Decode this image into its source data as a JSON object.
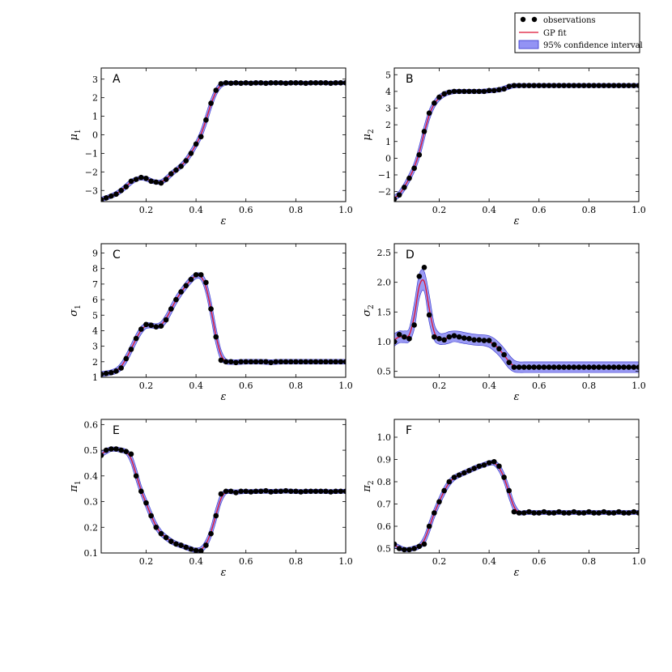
{
  "colors": {
    "observation": "#000000",
    "fit": "#dd1133",
    "band": "#6f6ff0",
    "band_edge": "#3333cc",
    "axes": "#000000"
  },
  "legend": {
    "placement": "top-right",
    "items": [
      {
        "label": "observations",
        "kind": "dots"
      },
      {
        "label": "GP fit",
        "kind": "line"
      },
      {
        "label": "95% confidence interval",
        "kind": "patch"
      }
    ]
  },
  "chart_data": [
    {
      "letter": "A",
      "type": "scatter",
      "xlabel": "ε",
      "ylabel": "μ1",
      "ylabel_base": "μ",
      "ylabel_sub": "1",
      "xlim": [
        0.02,
        1.0
      ],
      "ylim": [
        -3.6,
        3.6
      ],
      "xticks": [
        0.2,
        0.4,
        0.6,
        0.8,
        1.0
      ],
      "xtick_labels": [
        "0.2",
        "0.4",
        "0.6",
        "0.8",
        "1.0"
      ],
      "yticks": [
        -3,
        -2,
        -1,
        0,
        1,
        2,
        3
      ],
      "ytick_labels": [
        "−3",
        "−2",
        "−1",
        "0",
        "1",
        "2",
        "3"
      ],
      "ci_halfwidth": 0.1,
      "observations": {
        "x": [
          0.02,
          0.04,
          0.06,
          0.08,
          0.1,
          0.12,
          0.14,
          0.16,
          0.18,
          0.2,
          0.22,
          0.24,
          0.26,
          0.28,
          0.3,
          0.32,
          0.34,
          0.36,
          0.38,
          0.4,
          0.42,
          0.44,
          0.46,
          0.48,
          0.5,
          0.52,
          0.54,
          0.56,
          0.58,
          0.6,
          0.62,
          0.64,
          0.66,
          0.68,
          0.7,
          0.72,
          0.74,
          0.76,
          0.78,
          0.8,
          0.82,
          0.84,
          0.86,
          0.88,
          0.9,
          0.92,
          0.94,
          0.96,
          0.98,
          1.0
        ],
        "y": [
          -3.5,
          -3.4,
          -3.3,
          -3.2,
          -3.0,
          -2.8,
          -2.5,
          -2.4,
          -2.3,
          -2.35,
          -2.5,
          -2.55,
          -2.6,
          -2.4,
          -2.1,
          -1.9,
          -1.7,
          -1.4,
          -1.0,
          -0.5,
          -0.1,
          0.8,
          1.7,
          2.4,
          2.75,
          2.8,
          2.78,
          2.8,
          2.78,
          2.8,
          2.78,
          2.8,
          2.8,
          2.78,
          2.8,
          2.8,
          2.8,
          2.78,
          2.8,
          2.8,
          2.8,
          2.78,
          2.8,
          2.8,
          2.8,
          2.8,
          2.78,
          2.8,
          2.8,
          2.8
        ]
      }
    },
    {
      "letter": "B",
      "type": "scatter",
      "xlabel": "ε",
      "ylabel": "μ2",
      "ylabel_base": "μ",
      "ylabel_sub": "2",
      "xlim": [
        0.02,
        1.0
      ],
      "ylim": [
        -2.6,
        5.4
      ],
      "xticks": [
        0.2,
        0.4,
        0.6,
        0.8,
        1.0
      ],
      "xtick_labels": [
        "0.2",
        "0.4",
        "0.6",
        "0.8",
        "1.0"
      ],
      "yticks": [
        -2,
        -1,
        0,
        1,
        2,
        3,
        4,
        5
      ],
      "ytick_labels": [
        "−2",
        "−1",
        "0",
        "1",
        "2",
        "3",
        "4",
        "5"
      ],
      "ci_halfwidth": 0.12,
      "observations": {
        "x": [
          0.02,
          0.04,
          0.06,
          0.08,
          0.1,
          0.12,
          0.14,
          0.16,
          0.18,
          0.2,
          0.22,
          0.24,
          0.26,
          0.28,
          0.3,
          0.32,
          0.34,
          0.36,
          0.38,
          0.4,
          0.42,
          0.44,
          0.46,
          0.48,
          0.5,
          0.52,
          0.54,
          0.56,
          0.58,
          0.6,
          0.62,
          0.64,
          0.66,
          0.68,
          0.7,
          0.72,
          0.74,
          0.76,
          0.78,
          0.8,
          0.82,
          0.84,
          0.86,
          0.88,
          0.9,
          0.92,
          0.94,
          0.96,
          0.98,
          1.0
        ],
        "y": [
          -2.45,
          -2.2,
          -1.75,
          -1.2,
          -0.6,
          0.2,
          1.6,
          2.7,
          3.3,
          3.65,
          3.85,
          3.95,
          4.0,
          4.0,
          4.0,
          4.0,
          4.0,
          4.0,
          4.0,
          4.05,
          4.05,
          4.1,
          4.15,
          4.3,
          4.35,
          4.35,
          4.35,
          4.35,
          4.35,
          4.35,
          4.35,
          4.35,
          4.35,
          4.35,
          4.35,
          4.35,
          4.35,
          4.35,
          4.35,
          4.35,
          4.35,
          4.35,
          4.35,
          4.35,
          4.35,
          4.35,
          4.35,
          4.35,
          4.35,
          4.35
        ]
      }
    },
    {
      "letter": "C",
      "type": "scatter",
      "xlabel": "ε",
      "ylabel": "σ1",
      "ylabel_base": "σ",
      "ylabel_sub": "1",
      "xlim": [
        0.02,
        1.0
      ],
      "ylim": [
        1.0,
        9.6
      ],
      "xticks": [
        0.2,
        0.4,
        0.6,
        0.8,
        1.0
      ],
      "xtick_labels": [
        "0.2",
        "0.4",
        "0.6",
        "0.8",
        "1.0"
      ],
      "yticks": [
        1,
        2,
        3,
        4,
        5,
        6,
        7,
        8,
        9
      ],
      "ytick_labels": [
        "1",
        "2",
        "3",
        "4",
        "5",
        "6",
        "7",
        "8",
        "9"
      ],
      "ci_halfwidth": 0.15,
      "observations": {
        "x": [
          0.02,
          0.04,
          0.06,
          0.08,
          0.1,
          0.12,
          0.14,
          0.16,
          0.18,
          0.2,
          0.22,
          0.24,
          0.26,
          0.28,
          0.3,
          0.32,
          0.34,
          0.36,
          0.38,
          0.4,
          0.42,
          0.44,
          0.46,
          0.48,
          0.5,
          0.52,
          0.54,
          0.56,
          0.58,
          0.6,
          0.62,
          0.64,
          0.66,
          0.68,
          0.7,
          0.72,
          0.74,
          0.76,
          0.78,
          0.8,
          0.82,
          0.84,
          0.86,
          0.88,
          0.9,
          0.92,
          0.94,
          0.96,
          0.98,
          1.0
        ],
        "y": [
          1.2,
          1.25,
          1.3,
          1.4,
          1.6,
          2.2,
          2.8,
          3.5,
          4.1,
          4.4,
          4.35,
          4.25,
          4.3,
          4.7,
          5.4,
          6.0,
          6.5,
          6.9,
          7.3,
          7.6,
          7.6,
          7.1,
          5.4,
          3.6,
          2.1,
          2.0,
          2.0,
          1.95,
          2.0,
          2.0,
          2.0,
          2.0,
          2.0,
          2.0,
          1.95,
          2.0,
          2.0,
          2.0,
          2.0,
          2.0,
          2.0,
          2.0,
          2.0,
          2.0,
          2.0,
          2.0,
          2.0,
          2.0,
          2.0,
          2.0
        ]
      }
    },
    {
      "letter": "D",
      "type": "scatter",
      "xlabel": "ε",
      "ylabel": "σ2",
      "ylabel_base": "σ",
      "ylabel_sub": "2",
      "xlim": [
        0.02,
        1.0
      ],
      "ylim": [
        0.4,
        2.65
      ],
      "xticks": [
        0.2,
        0.4,
        0.6,
        0.8,
        1.0
      ],
      "xtick_labels": [
        "0.2",
        "0.4",
        "0.6",
        "0.8",
        "1.0"
      ],
      "yticks": [
        0.5,
        1.0,
        1.5,
        2.0,
        2.5
      ],
      "ytick_labels": [
        "0.5",
        "1.0",
        "1.5",
        "2.0",
        "2.5"
      ],
      "ci_halfwidth": 0.09,
      "observations": {
        "x": [
          0.02,
          0.04,
          0.06,
          0.08,
          0.1,
          0.12,
          0.14,
          0.16,
          0.18,
          0.2,
          0.22,
          0.24,
          0.26,
          0.28,
          0.3,
          0.32,
          0.34,
          0.36,
          0.38,
          0.4,
          0.42,
          0.44,
          0.46,
          0.48,
          0.5,
          0.52,
          0.54,
          0.56,
          0.58,
          0.6,
          0.62,
          0.64,
          0.66,
          0.68,
          0.7,
          0.72,
          0.74,
          0.76,
          0.78,
          0.8,
          0.82,
          0.84,
          0.86,
          0.88,
          0.9,
          0.92,
          0.94,
          0.96,
          0.98,
          1.0
        ],
        "y": [
          1.0,
          1.12,
          1.08,
          1.05,
          1.28,
          2.1,
          2.25,
          1.45,
          1.08,
          1.05,
          1.03,
          1.08,
          1.1,
          1.08,
          1.06,
          1.05,
          1.03,
          1.03,
          1.02,
          1.02,
          0.95,
          0.88,
          0.78,
          0.65,
          0.57,
          0.57,
          0.57,
          0.57,
          0.57,
          0.57,
          0.57,
          0.57,
          0.57,
          0.57,
          0.57,
          0.57,
          0.57,
          0.57,
          0.57,
          0.57,
          0.57,
          0.57,
          0.57,
          0.57,
          0.57,
          0.57,
          0.57,
          0.57,
          0.57,
          0.57
        ]
      }
    },
    {
      "letter": "E",
      "type": "scatter",
      "xlabel": "ε",
      "ylabel": "π1",
      "ylabel_base": "π",
      "ylabel_sub": "1",
      "xlim": [
        0.02,
        1.0
      ],
      "ylim": [
        0.1,
        0.62
      ],
      "xticks": [
        0.2,
        0.4,
        0.6,
        0.8,
        1.0
      ],
      "xtick_labels": [
        "0.2",
        "0.4",
        "0.6",
        "0.8",
        "1.0"
      ],
      "yticks": [
        0.1,
        0.2,
        0.3,
        0.4,
        0.5,
        0.6
      ],
      "ytick_labels": [
        "0.1",
        "0.2",
        "0.3",
        "0.4",
        "0.5",
        "0.6"
      ],
      "ci_halfwidth": 0.008,
      "observations": {
        "x": [
          0.02,
          0.04,
          0.06,
          0.08,
          0.1,
          0.12,
          0.14,
          0.16,
          0.18,
          0.2,
          0.22,
          0.24,
          0.26,
          0.28,
          0.3,
          0.32,
          0.34,
          0.36,
          0.38,
          0.4,
          0.42,
          0.44,
          0.46,
          0.48,
          0.5,
          0.52,
          0.54,
          0.56,
          0.58,
          0.6,
          0.62,
          0.64,
          0.66,
          0.68,
          0.7,
          0.72,
          0.74,
          0.76,
          0.78,
          0.8,
          0.82,
          0.84,
          0.86,
          0.88,
          0.9,
          0.92,
          0.94,
          0.96,
          0.98,
          1.0
        ],
        "y": [
          0.48,
          0.5,
          0.505,
          0.505,
          0.5,
          0.495,
          0.485,
          0.4,
          0.34,
          0.295,
          0.245,
          0.2,
          0.175,
          0.16,
          0.145,
          0.135,
          0.13,
          0.122,
          0.115,
          0.11,
          0.108,
          0.13,
          0.175,
          0.245,
          0.33,
          0.34,
          0.34,
          0.335,
          0.34,
          0.34,
          0.338,
          0.34,
          0.34,
          0.342,
          0.338,
          0.34,
          0.34,
          0.342,
          0.34,
          0.34,
          0.338,
          0.34,
          0.34,
          0.34,
          0.34,
          0.34,
          0.338,
          0.34,
          0.34,
          0.34
        ]
      }
    },
    {
      "letter": "F",
      "type": "scatter",
      "xlabel": "ε",
      "ylabel": "π2",
      "ylabel_base": "π",
      "ylabel_sub": "2",
      "xlim": [
        0.02,
        1.0
      ],
      "ylim": [
        0.48,
        1.08
      ],
      "xticks": [
        0.2,
        0.4,
        0.6,
        0.8,
        1.0
      ],
      "xtick_labels": [
        "0.2",
        "0.4",
        "0.6",
        "0.8",
        "1.0"
      ],
      "yticks": [
        0.5,
        0.6,
        0.7,
        0.8,
        0.9,
        1.0
      ],
      "ytick_labels": [
        "0.5",
        "0.6",
        "0.7",
        "0.8",
        "0.9",
        "1.0"
      ],
      "ci_halfwidth": 0.009,
      "observations": {
        "x": [
          0.02,
          0.04,
          0.06,
          0.08,
          0.1,
          0.12,
          0.14,
          0.16,
          0.18,
          0.2,
          0.22,
          0.24,
          0.26,
          0.28,
          0.3,
          0.32,
          0.34,
          0.36,
          0.38,
          0.4,
          0.42,
          0.44,
          0.46,
          0.48,
          0.5,
          0.52,
          0.54,
          0.56,
          0.58,
          0.6,
          0.62,
          0.64,
          0.66,
          0.68,
          0.7,
          0.72,
          0.74,
          0.76,
          0.78,
          0.8,
          0.82,
          0.84,
          0.86,
          0.88,
          0.9,
          0.92,
          0.94,
          0.96,
          0.98,
          1.0
        ],
        "y": [
          0.52,
          0.5,
          0.495,
          0.495,
          0.5,
          0.51,
          0.52,
          0.6,
          0.66,
          0.71,
          0.76,
          0.8,
          0.82,
          0.83,
          0.84,
          0.85,
          0.86,
          0.87,
          0.875,
          0.885,
          0.89,
          0.87,
          0.82,
          0.76,
          0.665,
          0.66,
          0.66,
          0.665,
          0.66,
          0.66,
          0.665,
          0.66,
          0.66,
          0.665,
          0.66,
          0.66,
          0.665,
          0.66,
          0.66,
          0.665,
          0.66,
          0.66,
          0.665,
          0.66,
          0.66,
          0.665,
          0.66,
          0.66,
          0.665,
          0.66
        ]
      }
    }
  ]
}
